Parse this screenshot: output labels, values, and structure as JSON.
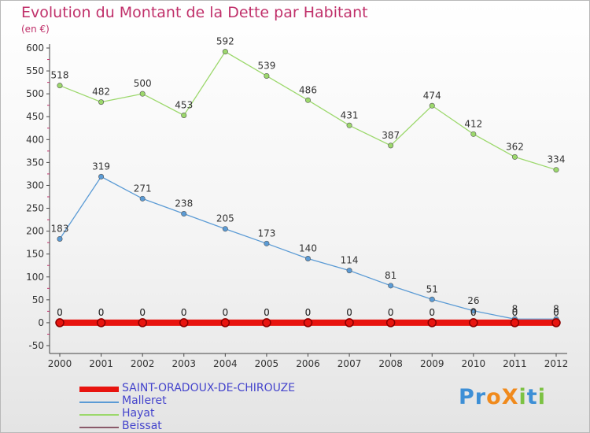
{
  "header": {
    "title": "Evolution du Montant de la Dette par Habitant",
    "unit": "(en €)"
  },
  "logo": {
    "text": "ProXiti",
    "letters": [
      {
        "ch": "P",
        "color": "#3d8fd6"
      },
      {
        "ch": "r",
        "color": "#3d8fd6"
      },
      {
        "ch": "o",
        "color": "#f08a1c"
      },
      {
        "ch": "X",
        "color": "#f08a1c"
      },
      {
        "ch": "i",
        "color": "#7cc243"
      },
      {
        "ch": "t",
        "color": "#3d8fd6"
      },
      {
        "ch": "i",
        "color": "#7cc243"
      }
    ]
  },
  "chart_data": {
    "type": "line",
    "title": "Evolution du Montant de la Dette par Habitant",
    "ylabel": "(en €)",
    "x": [
      "2000",
      "2001",
      "2002",
      "2003",
      "2004",
      "2005",
      "2006",
      "2007",
      "2008",
      "2009",
      "2010",
      "2011",
      "2012"
    ],
    "ylim": [
      -50,
      600
    ],
    "yticks": [
      "-50",
      "0",
      "50",
      "100",
      "150",
      "200",
      "250",
      "300",
      "350",
      "400",
      "450",
      "500",
      "550",
      "600"
    ],
    "grid": false,
    "legend_position": "bottom-left",
    "series": [
      {
        "name": "SAINT-ORADOUX-DE-CHIROUZE",
        "color": "#e8140f",
        "values": [
          0,
          0,
          0,
          0,
          0,
          0,
          0,
          0,
          0,
          0,
          0,
          0,
          0
        ],
        "labels": [
          "0",
          "0",
          "0",
          "0",
          "0",
          "0",
          "0",
          "0",
          "0",
          "0",
          "0",
          "0",
          "0"
        ]
      },
      {
        "name": "Malleret",
        "color": "#5b9bd5",
        "values": [
          183,
          319,
          271,
          238,
          205,
          173,
          140,
          114,
          81,
          51,
          26,
          8,
          8
        ],
        "labels": [
          "183",
          "319",
          "271",
          "238",
          "205",
          "173",
          "140",
          "114",
          "81",
          "51",
          "26",
          "8",
          "8"
        ]
      },
      {
        "name": "Hayat",
        "color": "#9cd86c",
        "values": [
          518,
          482,
          500,
          453,
          592,
          539,
          486,
          431,
          387,
          474,
          412,
          362,
          334
        ],
        "labels": [
          "518",
          "482",
          "500",
          "453",
          "592",
          "539",
          "486",
          "431",
          "387",
          "474",
          "412",
          "362",
          "334"
        ]
      },
      {
        "name": "Beissat",
        "color": "#8a5a6a",
        "values": [
          0,
          0,
          0,
          0,
          0,
          0,
          0,
          0,
          0,
          0,
          0,
          0,
          0
        ],
        "labels": [
          "0",
          "0",
          "0",
          "0",
          "0",
          "0",
          "0",
          "0",
          "0",
          "0",
          "0",
          "0",
          "0"
        ]
      }
    ]
  }
}
